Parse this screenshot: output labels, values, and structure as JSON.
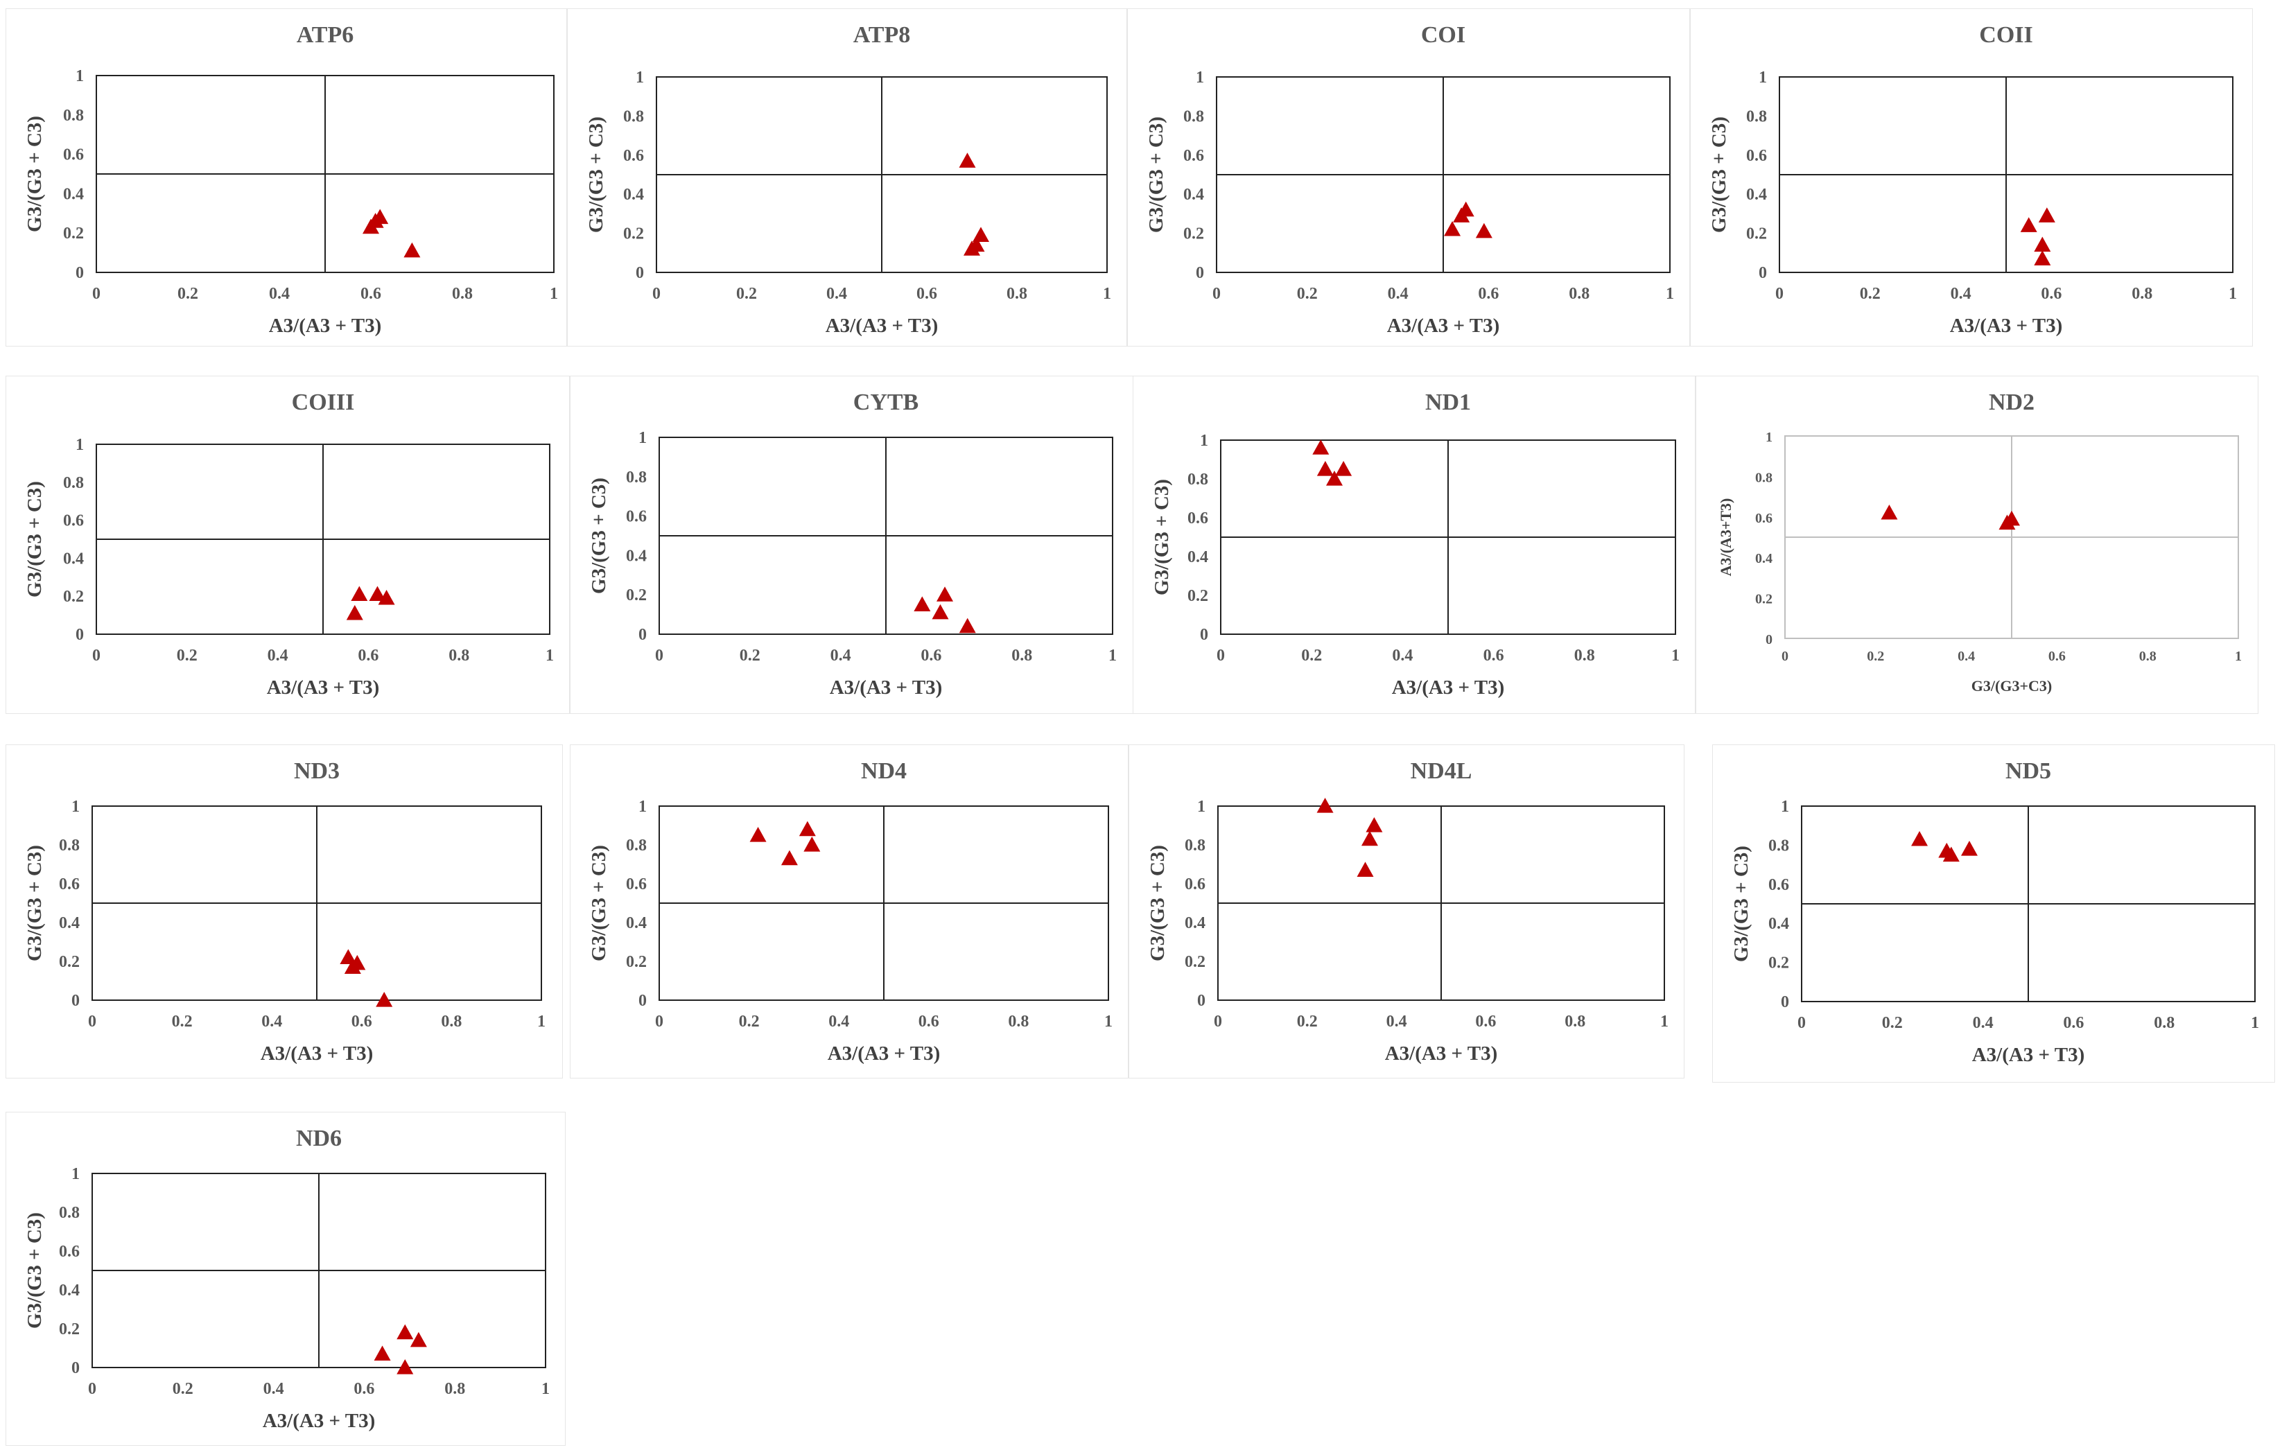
{
  "figure": {
    "marker_color": "#c00000",
    "marker_shape": "triangle"
  },
  "chart_data": [
    {
      "type": "scatter",
      "title": "ATP6",
      "xlabel": "A3/(A3 + T3)",
      "ylabel": "G3/(G3 + C3)",
      "xlim": [
        0,
        1
      ],
      "ylim": [
        0,
        1
      ],
      "xticks": [
        "0",
        "0.2",
        "0.4",
        "0.6",
        "0.8",
        "1"
      ],
      "yticks": [
        "0",
        "0.2",
        "0.4",
        "0.6",
        "0.8",
        "1"
      ],
      "reference_lines": {
        "x": 0.5,
        "y": 0.5
      },
      "grid": false,
      "points": [
        {
          "x": 0.61,
          "y": 0.26
        },
        {
          "x": 0.6,
          "y": 0.23
        },
        {
          "x": 0.62,
          "y": 0.28
        },
        {
          "x": 0.69,
          "y": 0.11
        }
      ]
    },
    {
      "type": "scatter",
      "title": "ATP8",
      "xlabel": "A3/(A3 + T3)",
      "ylabel": "G3/(G3 + C3)",
      "xlim": [
        0,
        1
      ],
      "ylim": [
        0,
        1
      ],
      "xticks": [
        "0",
        "0.2",
        "0.4",
        "0.6",
        "0.8",
        "1"
      ],
      "yticks": [
        "0",
        "0.2",
        "0.4",
        "0.6",
        "0.8",
        "1"
      ],
      "reference_lines": {
        "x": 0.5,
        "y": 0.5
      },
      "grid": false,
      "points": [
        {
          "x": 0.69,
          "y": 0.57
        },
        {
          "x": 0.72,
          "y": 0.19
        },
        {
          "x": 0.71,
          "y": 0.14
        },
        {
          "x": 0.7,
          "y": 0.12
        }
      ]
    },
    {
      "type": "scatter",
      "title": "COI",
      "xlabel": "A3/(A3 + T3)",
      "ylabel": "G3/(G3 + C3)",
      "xlim": [
        0,
        1
      ],
      "ylim": [
        0,
        1
      ],
      "xticks": [
        "0",
        "0.2",
        "0.4",
        "0.6",
        "0.8",
        "1"
      ],
      "yticks": [
        "0",
        "0.2",
        "0.4",
        "0.6",
        "0.8",
        "1"
      ],
      "reference_lines": {
        "x": 0.5,
        "y": 0.5
      },
      "grid": false,
      "points": [
        {
          "x": 0.52,
          "y": 0.22
        },
        {
          "x": 0.55,
          "y": 0.32
        },
        {
          "x": 0.54,
          "y": 0.29
        },
        {
          "x": 0.59,
          "y": 0.21
        }
      ]
    },
    {
      "type": "scatter",
      "title": "COII",
      "xlabel": "A3/(A3 + T3)",
      "ylabel": "G3/(G3 + C3)",
      "xlim": [
        0,
        1
      ],
      "ylim": [
        0,
        1
      ],
      "xticks": [
        "0",
        "0.2",
        "0.4",
        "0.6",
        "0.8",
        "1"
      ],
      "yticks": [
        "0",
        "0.2",
        "0.4",
        "0.6",
        "0.8",
        "1"
      ],
      "reference_lines": {
        "x": 0.5,
        "y": 0.5
      },
      "grid": false,
      "points": [
        {
          "x": 0.55,
          "y": 0.24
        },
        {
          "x": 0.59,
          "y": 0.29
        },
        {
          "x": 0.58,
          "y": 0.14
        },
        {
          "x": 0.58,
          "y": 0.07
        }
      ]
    },
    {
      "type": "scatter",
      "title": "COIII",
      "xlabel": "A3/(A3 + T3)",
      "ylabel": "G3/(G3 + C3)",
      "xlim": [
        0,
        1
      ],
      "ylim": [
        0,
        1
      ],
      "xticks": [
        "0",
        "0.2",
        "0.4",
        "0.6",
        "0.8",
        "1"
      ],
      "yticks": [
        "0",
        "0.2",
        "0.4",
        "0.6",
        "0.8",
        "1"
      ],
      "reference_lines": {
        "x": 0.5,
        "y": 0.5
      },
      "grid": false,
      "points": [
        {
          "x": 0.58,
          "y": 0.21
        },
        {
          "x": 0.62,
          "y": 0.21
        },
        {
          "x": 0.64,
          "y": 0.19
        },
        {
          "x": 0.57,
          "y": 0.11
        }
      ]
    },
    {
      "type": "scatter",
      "title": "CYTB",
      "xlabel": "A3/(A3 + T3)",
      "ylabel": "G3/(G3 + C3)",
      "xlim": [
        0,
        1
      ],
      "ylim": [
        0,
        1
      ],
      "xticks": [
        "0",
        "0.2",
        "0.4",
        "0.6",
        "0.8",
        "1"
      ],
      "yticks": [
        "0",
        "0.2",
        "0.4",
        "0.6",
        "0.8",
        "1"
      ],
      "reference_lines": {
        "x": 0.5,
        "y": 0.5
      },
      "grid": false,
      "points": [
        {
          "x": 0.58,
          "y": 0.15
        },
        {
          "x": 0.63,
          "y": 0.2
        },
        {
          "x": 0.62,
          "y": 0.11
        },
        {
          "x": 0.68,
          "y": 0.04
        }
      ]
    },
    {
      "type": "scatter",
      "title": "ND1",
      "xlabel": "A3/(A3 + T3)",
      "ylabel": "G3/(G3 + C3)",
      "xlim": [
        0,
        1
      ],
      "ylim": [
        0,
        1
      ],
      "xticks": [
        "0",
        "0.2",
        "0.4",
        "0.6",
        "0.8",
        "1"
      ],
      "yticks": [
        "0",
        "0.2",
        "0.4",
        "0.6",
        "0.8",
        "1"
      ],
      "reference_lines": {
        "x": 0.5,
        "y": 0.5
      },
      "grid": false,
      "points": [
        {
          "x": 0.22,
          "y": 0.96
        },
        {
          "x": 0.23,
          "y": 0.85
        },
        {
          "x": 0.25,
          "y": 0.8
        },
        {
          "x": 0.27,
          "y": 0.85
        }
      ]
    },
    {
      "type": "scatter",
      "title": "ND2",
      "xlabel": "G3/(G3+C3)",
      "ylabel": "A3/(A3+T3)",
      "xlim": [
        0,
        1
      ],
      "ylim": [
        0,
        1
      ],
      "xticks": [
        "0",
        "0.2",
        "0.4",
        "0.6",
        "0.8",
        "1"
      ],
      "yticks": [
        "0",
        "0.2",
        "0.4",
        "0.6",
        "0.8",
        "1"
      ],
      "reference_lines": {
        "x": 0.5,
        "y": 0.5
      },
      "grid": false,
      "light_style": true,
      "points": [
        {
          "x": 0.23,
          "y": 0.62
        },
        {
          "x": 0.49,
          "y": 0.57
        },
        {
          "x": 0.5,
          "y": 0.59
        }
      ]
    },
    {
      "type": "scatter",
      "title": "ND3",
      "xlabel": "A3/(A3 + T3)",
      "ylabel": "G3/(G3 + C3)",
      "xlim": [
        0,
        1
      ],
      "ylim": [
        0,
        1
      ],
      "xticks": [
        "0",
        "0.2",
        "0.4",
        "0.6",
        "0.8",
        "1"
      ],
      "yticks": [
        "0",
        "0.2",
        "0.4",
        "0.6",
        "0.8",
        "1"
      ],
      "reference_lines": {
        "x": 0.5,
        "y": 0.5
      },
      "grid": false,
      "points": [
        {
          "x": 0.57,
          "y": 0.22
        },
        {
          "x": 0.59,
          "y": 0.19
        },
        {
          "x": 0.58,
          "y": 0.17
        },
        {
          "x": 0.65,
          "y": 0.0
        }
      ]
    },
    {
      "type": "scatter",
      "title": "ND4",
      "xlabel": "A3/(A3 + T3)",
      "ylabel": "G3/(G3 + C3)",
      "xlim": [
        0,
        1
      ],
      "ylim": [
        0,
        1
      ],
      "xticks": [
        "0",
        "0.2",
        "0.4",
        "0.6",
        "0.8",
        "1"
      ],
      "yticks": [
        "0",
        "0.2",
        "0.4",
        "0.6",
        "0.8",
        "1"
      ],
      "reference_lines": {
        "x": 0.5,
        "y": 0.5
      },
      "grid": false,
      "points": [
        {
          "x": 0.22,
          "y": 0.85
        },
        {
          "x": 0.33,
          "y": 0.88
        },
        {
          "x": 0.34,
          "y": 0.8
        },
        {
          "x": 0.29,
          "y": 0.73
        }
      ]
    },
    {
      "type": "scatter",
      "title": "ND4L",
      "xlabel": "A3/(A3 + T3)",
      "ylabel": "G3/(G3 + C3)",
      "xlim": [
        0,
        1
      ],
      "ylim": [
        0,
        1
      ],
      "xticks": [
        "0",
        "0.2",
        "0.4",
        "0.6",
        "0.8",
        "1"
      ],
      "yticks": [
        "0",
        "0.2",
        "0.4",
        "0.6",
        "0.8",
        "1"
      ],
      "reference_lines": {
        "x": 0.5,
        "y": 0.5
      },
      "grid": false,
      "points": [
        {
          "x": 0.24,
          "y": 1.0
        },
        {
          "x": 0.35,
          "y": 0.9
        },
        {
          "x": 0.34,
          "y": 0.83
        },
        {
          "x": 0.33,
          "y": 0.67
        }
      ]
    },
    {
      "type": "scatter",
      "title": "ND5",
      "xlabel": "A3/(A3 + T3)",
      "ylabel": "G3/(G3 + C3)",
      "xlim": [
        0,
        1
      ],
      "ylim": [
        0,
        1
      ],
      "xticks": [
        "0",
        "0.2",
        "0.4",
        "0.6",
        "0.8",
        "1"
      ],
      "yticks": [
        "0",
        "0.2",
        "0.4",
        "0.6",
        "0.8",
        "1"
      ],
      "reference_lines": {
        "x": 0.5,
        "y": 0.5
      },
      "grid": false,
      "points": [
        {
          "x": 0.26,
          "y": 0.83
        },
        {
          "x": 0.32,
          "y": 0.77
        },
        {
          "x": 0.33,
          "y": 0.75
        },
        {
          "x": 0.37,
          "y": 0.78
        }
      ]
    },
    {
      "type": "scatter",
      "title": "ND6",
      "xlabel": "A3/(A3 + T3)",
      "ylabel": "G3/(G3 + C3)",
      "xlim": [
        0,
        1
      ],
      "ylim": [
        0,
        1
      ],
      "xticks": [
        "0",
        "0.2",
        "0.4",
        "0.6",
        "0.8",
        "1"
      ],
      "yticks": [
        "0",
        "0.2",
        "0.4",
        "0.6",
        "0.8",
        "1"
      ],
      "reference_lines": {
        "x": 0.5,
        "y": 0.5
      },
      "grid": false,
      "points": [
        {
          "x": 0.69,
          "y": 0.18
        },
        {
          "x": 0.72,
          "y": 0.14
        },
        {
          "x": 0.64,
          "y": 0.07
        },
        {
          "x": 0.69,
          "y": 0.0
        }
      ]
    }
  ]
}
